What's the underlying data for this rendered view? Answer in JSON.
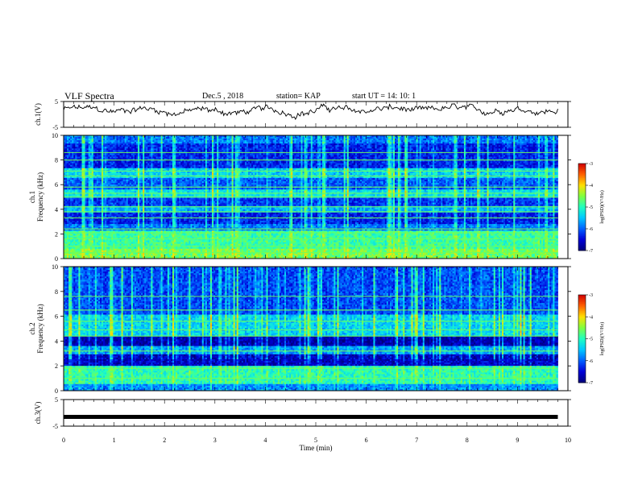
{
  "header": {
    "title": "VLF Spectra",
    "date": "Dec.5 , 2018",
    "station": "station= KAP",
    "start": "start  UT =   14: 10: 1"
  },
  "colors": {
    "map": [
      "#00007a",
      "#0000d8",
      "#0060ff",
      "#00c8ff",
      "#20ffc0",
      "#80ff40",
      "#ffe000",
      "#ff6000",
      "#d00000"
    ]
  },
  "chart_data": [
    {
      "type": "line",
      "ylabel": "ch.1(V)",
      "ylim": [
        -5,
        5
      ],
      "y_ticks": [
        "5",
        "-5"
      ],
      "xlim": [
        0,
        10
      ],
      "trace_mean": 1.8,
      "trace_amp": 1.6
    },
    {
      "type": "heatmap",
      "ylabel_lines": [
        "ch.1",
        "Frequency (kHz)"
      ],
      "ylim": [
        0,
        10
      ],
      "y_ticks": [
        "0",
        "2",
        "4",
        "6",
        "8",
        "10"
      ],
      "colorbar": {
        "min": -7,
        "max": -3,
        "ticks": [
          "-3",
          "-4",
          "-5",
          "-6",
          "-7"
        ],
        "label": "log(PSD)(V²/Hz)"
      },
      "bands": [
        {
          "from": 0.0,
          "to": 0.8,
          "log_psd": -4.6
        },
        {
          "from": 0.8,
          "to": 2.3,
          "log_psd": -4.9
        },
        {
          "from": 2.3,
          "to": 2.8,
          "log_psd": -5.9
        },
        {
          "from": 2.8,
          "to": 3.7,
          "log_psd": -6.3
        },
        {
          "from": 3.7,
          "to": 4.3,
          "log_psd": -5.6
        },
        {
          "from": 4.3,
          "to": 4.9,
          "log_psd": -6.2
        },
        {
          "from": 4.9,
          "to": 5.6,
          "log_psd": -5.3
        },
        {
          "from": 5.6,
          "to": 6.6,
          "log_psd": -6.0
        },
        {
          "from": 6.6,
          "to": 7.3,
          "log_psd": -5.4
        },
        {
          "from": 7.3,
          "to": 9.4,
          "log_psd": -6.3
        },
        {
          "from": 9.4,
          "to": 10.0,
          "log_psd": -5.9
        }
      ],
      "lines_khz": [
        0.5,
        1.0,
        1.6,
        2.1,
        2.4,
        3.3,
        3.8,
        4.2,
        5.0,
        5.3,
        5.8,
        6.7,
        7.1,
        8.0,
        8.6
      ]
    },
    {
      "type": "heatmap",
      "ylabel_lines": [
        "ch.2",
        "Frequency (kHz)"
      ],
      "ylim": [
        0,
        10
      ],
      "y_ticks": [
        "0",
        "2",
        "4",
        "6",
        "8",
        "10"
      ],
      "colorbar": {
        "min": -7,
        "max": -3,
        "ticks": [
          "-3",
          "-4",
          "-5",
          "-6",
          "-7"
        ],
        "label": "log(PSD)(V²/Hz)"
      },
      "bands": [
        {
          "from": 0.0,
          "to": 0.5,
          "log_psd": -5.8
        },
        {
          "from": 0.5,
          "to": 2.0,
          "log_psd": -5.0
        },
        {
          "from": 2.0,
          "to": 3.0,
          "log_psd": -6.6
        },
        {
          "from": 3.0,
          "to": 3.6,
          "log_psd": -5.7
        },
        {
          "from": 3.6,
          "to": 4.4,
          "log_psd": -6.7
        },
        {
          "from": 4.4,
          "to": 6.2,
          "log_psd": -5.4
        },
        {
          "from": 6.2,
          "to": 10.0,
          "log_psd": -6.1
        }
      ],
      "lines_khz": [
        1.0,
        1.8,
        3.2,
        4.4,
        4.9,
        5.6,
        6.5,
        7.6
      ]
    },
    {
      "type": "line",
      "ylabel": "ch.3(V)",
      "ylim": [
        -5,
        5
      ],
      "y_ticks": [
        "5",
        "-5"
      ],
      "xlim": [
        0,
        10
      ],
      "trace_mean": -1.5,
      "trace_amp": 0
    }
  ],
  "x_axis": {
    "label": "Time (min)",
    "ticks": [
      "0",
      "1",
      "2",
      "3",
      "4",
      "5",
      "6",
      "7",
      "8",
      "9",
      "10"
    ],
    "range": [
      0,
      10
    ],
    "data_end": 9.8
  }
}
